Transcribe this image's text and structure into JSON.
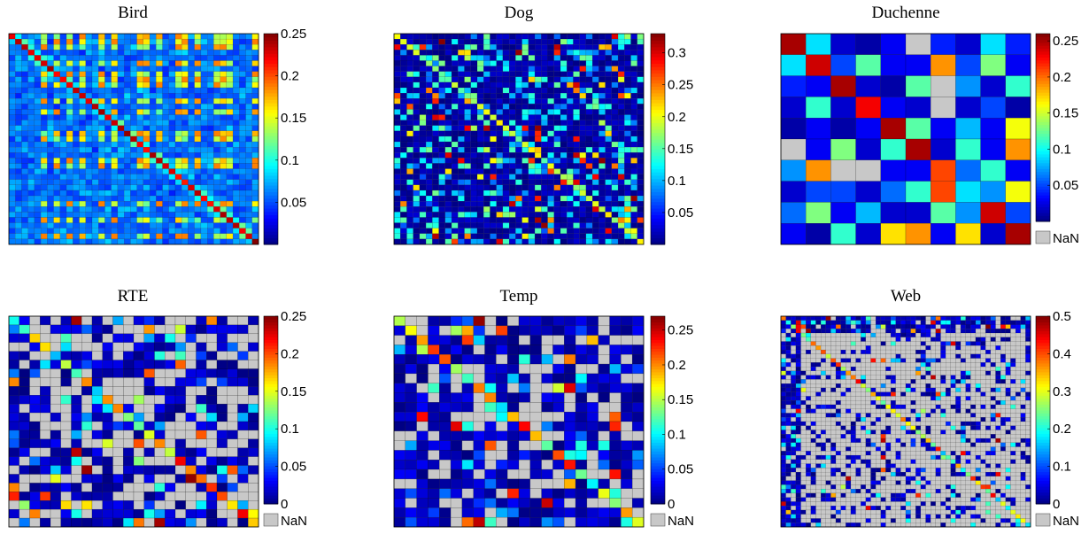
{
  "figure": {
    "type": "heatmap_grid",
    "colormap": "jet",
    "nan_color": "#c8c8c8",
    "nan_label": "NaN"
  },
  "chart_data": [
    {
      "type": "heatmap",
      "title": "Bird",
      "size": 39,
      "vmax": 0.25,
      "colorbar_ticks": [
        "0.05",
        "0.1",
        "0.15",
        "0.2",
        "0.25"
      ],
      "has_nan": false,
      "pattern": "banded-symmetric",
      "note": "cell values estimated; diagonal near maximum"
    },
    {
      "type": "heatmap",
      "title": "Dog",
      "size": 39,
      "vmax": 0.33,
      "colorbar_ticks": [
        "0.05",
        "0.1",
        "0.15",
        "0.2",
        "0.25",
        "0.3"
      ],
      "has_nan": false,
      "pattern": "sparse-diagonal"
    },
    {
      "type": "heatmap",
      "title": "Duchenne",
      "size": 10,
      "vmax": 0.26,
      "colorbar_ticks": [
        "0.05",
        "0.1",
        "0.15",
        "0.2",
        "0.25"
      ],
      "has_nan": true,
      "values": [
        [
          0.25,
          0.09,
          0.02,
          0.01,
          0.03,
          null,
          0.04,
          0.02,
          0.09,
          0.04
        ],
        [
          0.09,
          0.24,
          0.05,
          0.12,
          0.03,
          0.03,
          0.19,
          0.05,
          0.13,
          0.03
        ],
        [
          0.04,
          0.03,
          0.25,
          0.02,
          0.01,
          0.12,
          null,
          0.07,
          0.02,
          0.11
        ],
        [
          0.02,
          0.11,
          0.02,
          0.23,
          0.03,
          0.02,
          null,
          0.02,
          0.05,
          0.01
        ],
        [
          0.01,
          0.03,
          0.01,
          0.03,
          0.25,
          0.12,
          0.03,
          0.08,
          0.03,
          0.16
        ],
        [
          null,
          0.03,
          0.13,
          0.02,
          0.11,
          0.25,
          0.02,
          0.11,
          0.03,
          0.19
        ],
        [
          0.07,
          0.19,
          null,
          null,
          0.03,
          0.03,
          0.21,
          0.06,
          0.11,
          0.03
        ],
        [
          0.02,
          0.05,
          0.05,
          0.02,
          0.06,
          0.11,
          0.21,
          0.09,
          0.07,
          0.16
        ],
        [
          0.06,
          0.13,
          0.03,
          0.08,
          0.02,
          0.02,
          0.12,
          0.07,
          0.24,
          0.05
        ],
        [
          0.03,
          0.01,
          0.11,
          0.02,
          0.17,
          0.19,
          0.03,
          0.17,
          0.02,
          0.25
        ]
      ]
    },
    {
      "type": "heatmap",
      "title": "RTE",
      "size": 24,
      "vmax": 0.25,
      "colorbar_ticks": [
        "0",
        "0.05",
        "0.1",
        "0.15",
        "0.2",
        "0.25"
      ],
      "has_nan": true,
      "nan_fraction": 0.4,
      "pattern": "sparse-with-nan"
    },
    {
      "type": "heatmap",
      "title": "Temp",
      "size": 22,
      "vmax": 0.27,
      "colorbar_ticks": [
        "0",
        "0.05",
        "0.1",
        "0.15",
        "0.2",
        "0.25"
      ],
      "has_nan": true,
      "nan_fraction": 0.3,
      "pattern": "sparse-with-nan"
    },
    {
      "type": "heatmap",
      "title": "Web",
      "size": 50,
      "vmax": 0.5,
      "colorbar_ticks": [
        "0",
        "0.1",
        "0.2",
        "0.3",
        "0.4",
        "0.5"
      ],
      "has_nan": true,
      "nan_fraction": 0.55,
      "pattern": "dense-nan-lower"
    }
  ]
}
